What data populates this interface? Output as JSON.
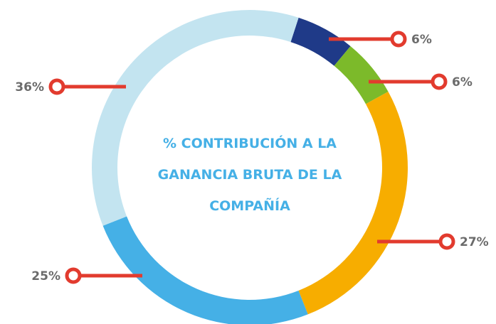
{
  "chart_data": {
    "type": "donut",
    "title": "% CONTRIBUCIÓN A LA GANANCIA BRUTA DE LA COMPAÑÍA",
    "values": [
      6,
      6,
      27,
      25,
      36
    ],
    "value_labels": [
      "6%",
      "6%",
      "27%",
      "25%",
      "36%"
    ],
    "colors": [
      "#1f3a88",
      "#7cba2a",
      "#f7ad00",
      "#45b0e6",
      "#c3e4f0"
    ]
  }
}
